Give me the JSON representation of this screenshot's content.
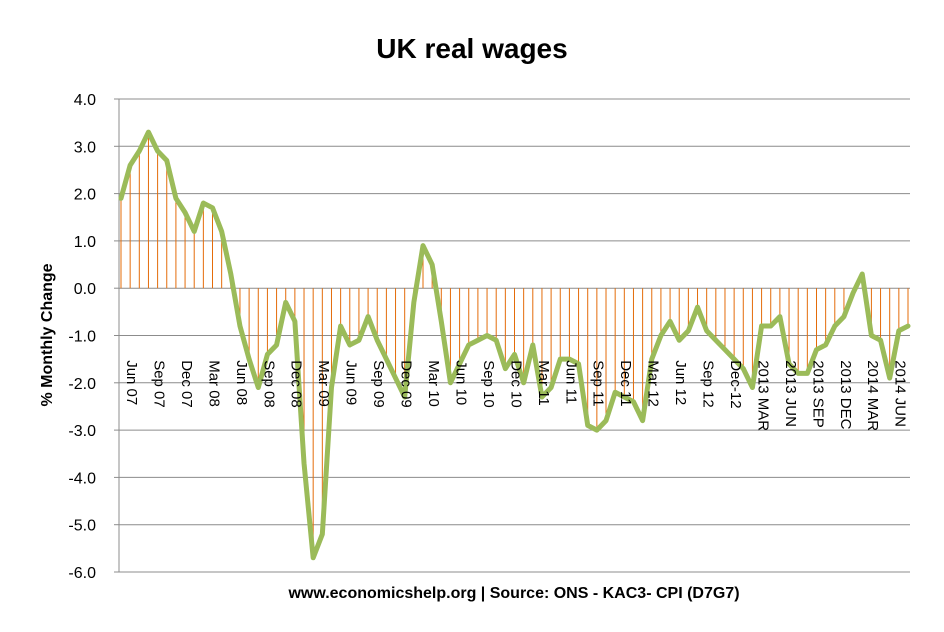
{
  "chart_data": {
    "type": "line",
    "title": "UK real wages",
    "xlabel": "www.economicshelp.org | Source: ONS - KAC3- CPI (D7G7)",
    "ylabel": "% Monthly Change",
    "ylim": [
      -6.0,
      4.0
    ],
    "yticks": [
      "4.0",
      "3.0",
      "2.0",
      "1.0",
      "0.0",
      "-1.0",
      "-2.0",
      "-3.0",
      "-4.0",
      "-5.0",
      "-6.0"
    ],
    "grid": true,
    "legend": "none",
    "line_color": "#9bbb59",
    "drop_line_color": "#e46c0a",
    "x_labels": [
      {
        "label": "Jun 07",
        "index": 0
      },
      {
        "label": "Sep 07",
        "index": 3
      },
      {
        "label": "Dec 07",
        "index": 6
      },
      {
        "label": "Mar 08",
        "index": 9
      },
      {
        "label": "Jun 08",
        "index": 12
      },
      {
        "label": "Sep 08",
        "index": 15
      },
      {
        "label": "Dec 08",
        "index": 18
      },
      {
        "label": "Mar 09",
        "index": 21
      },
      {
        "label": "Jun 09",
        "index": 24
      },
      {
        "label": "Sep 09",
        "index": 27
      },
      {
        "label": "Dec 09",
        "index": 30
      },
      {
        "label": "Mar 10",
        "index": 33
      },
      {
        "label": "Jun 10",
        "index": 36
      },
      {
        "label": "Sep 10",
        "index": 39
      },
      {
        "label": "Dec 10",
        "index": 42
      },
      {
        "label": "Mar 11",
        "index": 45
      },
      {
        "label": "Jun 11",
        "index": 48
      },
      {
        "label": "Sep 11",
        "index": 51
      },
      {
        "label": "Dec 11",
        "index": 54
      },
      {
        "label": "Mar 12",
        "index": 57
      },
      {
        "label": "Jun 12",
        "index": 60
      },
      {
        "label": "Sep 12",
        "index": 63
      },
      {
        "label": "Dec-12",
        "index": 66
      },
      {
        "label": "2013 MAR",
        "index": 69
      },
      {
        "label": "2013 JUN",
        "index": 72
      },
      {
        "label": "2013 SEP",
        "index": 75
      },
      {
        "label": "2013 DEC",
        "index": 78
      },
      {
        "label": "2014 MAR",
        "index": 81
      },
      {
        "label": "2014 JUN",
        "index": 84
      }
    ],
    "series": [
      {
        "values": [
          1.9,
          2.6,
          2.9,
          3.3,
          2.9,
          2.7,
          1.9,
          1.6,
          1.2,
          1.8,
          1.7,
          1.2,
          0.3,
          -0.8,
          -1.5,
          -2.1,
          -1.4,
          -1.2,
          -0.3,
          -0.7,
          -3.7,
          -5.7,
          -5.2,
          -2.1,
          -0.8,
          -1.2,
          -1.1,
          -0.6,
          -1.1,
          -1.5,
          -1.9,
          -2.3,
          -0.3,
          0.9,
          0.5,
          -0.7,
          -2.0,
          -1.6,
          -1.2,
          -1.1,
          -1.0,
          -1.1,
          -1.7,
          -1.4,
          -2.0,
          -1.2,
          -2.3,
          -2.1,
          -1.5,
          -1.5,
          -1.6,
          -2.9,
          -3.0,
          -2.8,
          -2.2,
          -2.3,
          -2.4,
          -2.8,
          -1.5,
          -1.0,
          -0.7,
          -1.1,
          -0.9,
          -0.4,
          -0.9,
          -1.1,
          -1.3,
          -1.5,
          -1.7,
          -2.1,
          -0.8,
          -0.8,
          -0.6,
          -1.6,
          -1.8,
          -1.8,
          -1.3,
          -1.2,
          -0.8,
          -0.6,
          -0.1,
          0.3,
          -1.0,
          -1.1,
          -1.9,
          -0.9,
          -0.8
        ]
      }
    ]
  }
}
